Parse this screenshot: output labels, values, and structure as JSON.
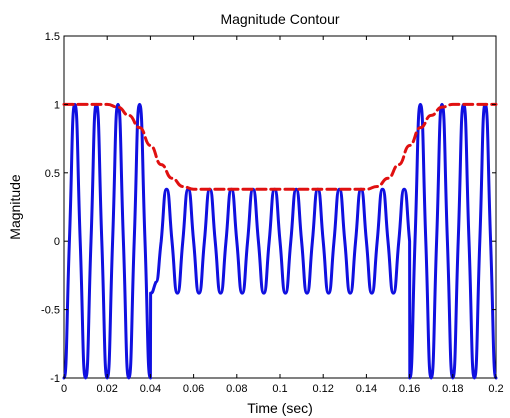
{
  "chart_data": {
    "type": "line",
    "title": "Magnitude Contour",
    "xlabel": "Time (sec)",
    "ylabel": "Magnitude",
    "xlim": [
      0,
      0.2
    ],
    "ylim": [
      -1,
      1.5
    ],
    "x_ticks": [
      "0",
      "0.02",
      "0.04",
      "0.06",
      "0.08",
      "0.1",
      "0.12",
      "0.14",
      "0.16",
      "0.18",
      "0.2"
    ],
    "y_ticks": [
      "-1",
      "-0.5",
      "0",
      "0.5",
      "1",
      "1.5"
    ],
    "grid": false,
    "legend": "none",
    "series": [
      {
        "color": "#1010e0",
        "style": "solid",
        "x": [
          0,
          0.0025,
          0.005,
          0.0075,
          0.01,
          0.0125,
          0.015,
          0.0175,
          0.02,
          0.0225,
          0.025,
          0.0275,
          0.03,
          0.0325,
          0.035,
          0.0375,
          0.04,
          0.0401,
          0.0425,
          0.045,
          0.0475,
          0.05,
          0.0525,
          0.055,
          0.0575,
          0.06,
          0.0625,
          0.065,
          0.0675,
          0.07,
          0.0725,
          0.075,
          0.0775,
          0.08,
          0.0825,
          0.085,
          0.0875,
          0.09,
          0.0925,
          0.095,
          0.0975,
          0.1,
          0.1025,
          0.105,
          0.1075,
          0.11,
          0.1125,
          0.115,
          0.1175,
          0.12,
          0.1225,
          0.125,
          0.1275,
          0.13,
          0.1325,
          0.135,
          0.1375,
          0.14,
          0.1425,
          0.145,
          0.1475,
          0.15,
          0.1525,
          0.155,
          0.1575,
          0.16,
          0.1601,
          0.1625,
          0.165,
          0.1675,
          0.17,
          0.1725,
          0.175,
          0.1775,
          0.18,
          0.1825,
          0.185,
          0.1875,
          0.19,
          0.1925,
          0.195,
          0.1975,
          0.2
        ],
        "y": [
          -1,
          0,
          1,
          0,
          -1,
          0,
          1,
          0,
          -1,
          0,
          1,
          0,
          -1,
          0,
          1,
          0,
          -1,
          -0.38,
          -0.3,
          0,
          0.38,
          0,
          -0.38,
          0,
          0.38,
          0,
          -0.38,
          0,
          0.38,
          0,
          -0.38,
          0,
          0.38,
          0,
          -0.38,
          0,
          0.38,
          0,
          -0.38,
          0,
          0.38,
          0,
          -0.38,
          0,
          0.38,
          0,
          -0.38,
          0,
          0.38,
          0,
          -0.38,
          0,
          0.38,
          0,
          -0.38,
          0,
          0.38,
          0,
          -0.38,
          0,
          0.38,
          0,
          -0.38,
          0,
          0.38,
          0,
          -1,
          0,
          1,
          0,
          -1,
          0,
          1,
          0,
          -1,
          0,
          1,
          0,
          -1,
          0,
          1,
          0,
          -1
        ]
      },
      {
        "color": "#e01010",
        "style": "dashed",
        "x": [
          0,
          0.01,
          0.02,
          0.025,
          0.03,
          0.035,
          0.04,
          0.045,
          0.05,
          0.055,
          0.06,
          0.07,
          0.08,
          0.09,
          0.1,
          0.11,
          0.12,
          0.13,
          0.14,
          0.145,
          0.15,
          0.155,
          0.16,
          0.165,
          0.17,
          0.175,
          0.18,
          0.19,
          0.2
        ],
        "y": [
          1,
          1,
          1,
          0.98,
          0.92,
          0.83,
          0.7,
          0.56,
          0.46,
          0.4,
          0.38,
          0.38,
          0.38,
          0.38,
          0.38,
          0.38,
          0.38,
          0.38,
          0.38,
          0.4,
          0.46,
          0.56,
          0.7,
          0.83,
          0.92,
          0.98,
          1,
          1,
          1
        ]
      }
    ]
  }
}
